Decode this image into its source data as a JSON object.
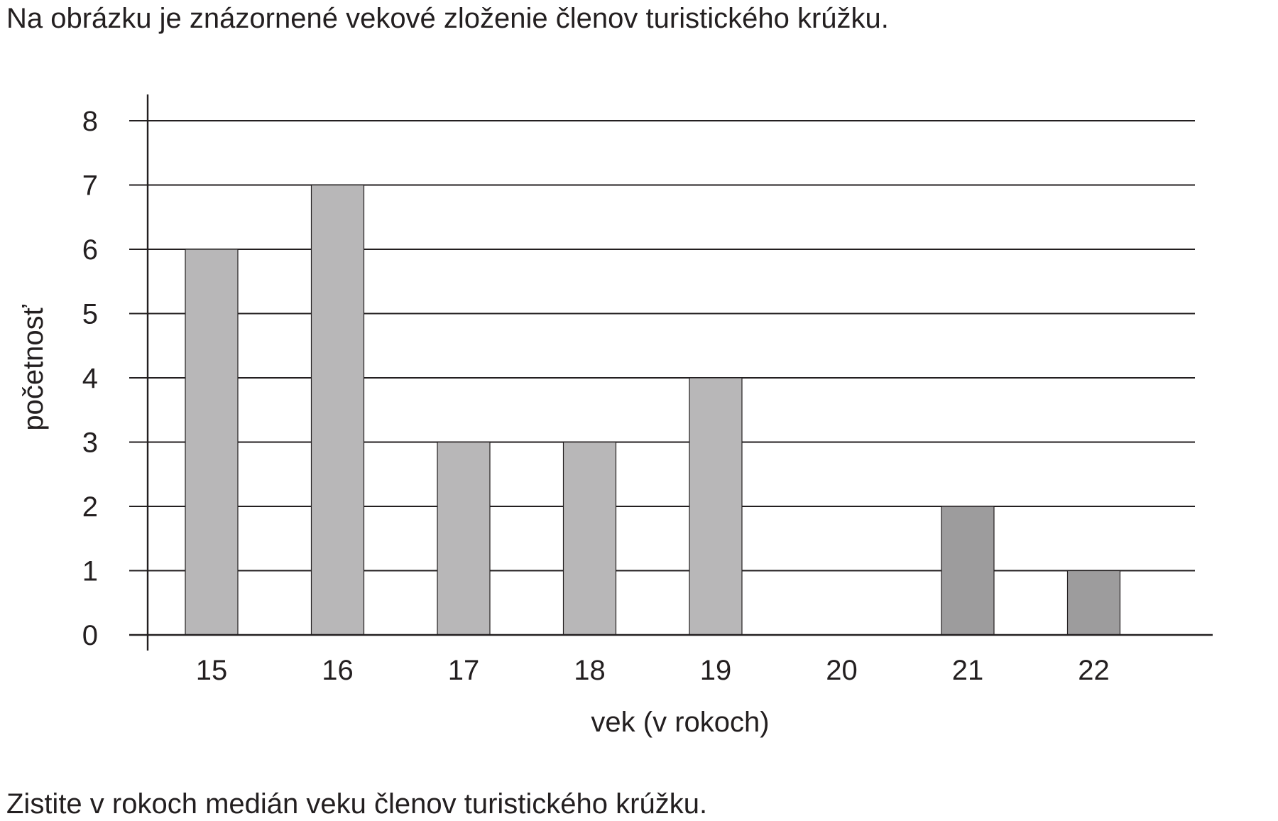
{
  "intro": "Na obrázku je znázornené vekové zloženie členov turistického krúžku.",
  "question": "Zistite v rokoch medián veku členov turistického krúžku.",
  "chart_data": {
    "type": "bar",
    "categories": [
      "15",
      "16",
      "17",
      "18",
      "19",
      "20",
      "21",
      "22"
    ],
    "values": [
      6,
      7,
      3,
      3,
      4,
      0,
      2,
      1
    ],
    "bar_colors": [
      "#b8b7b8",
      "#b8b7b8",
      "#b8b7b8",
      "#b8b7b8",
      "#b8b7b8",
      "#b8b7b8",
      "#9d9c9d",
      "#9d9c9d"
    ],
    "xlabel": "vek (v rokoch)",
    "ylabel": "početnosť",
    "ylim": [
      0,
      8
    ],
    "yticks": [
      "0",
      "1",
      "2",
      "3",
      "4",
      "5",
      "6",
      "7",
      "8"
    ],
    "grid": true,
    "legend": "none"
  }
}
